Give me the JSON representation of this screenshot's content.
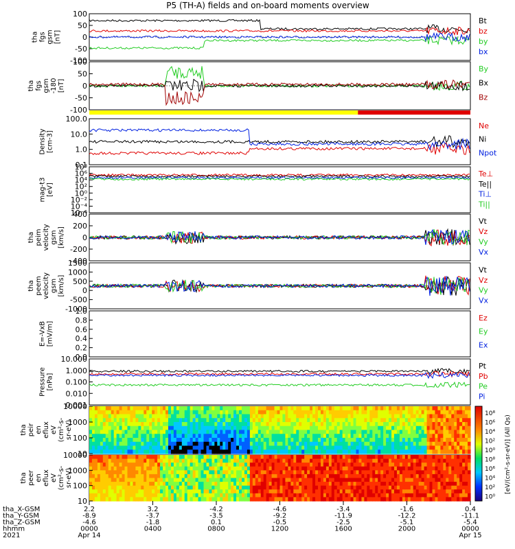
{
  "title": "P5 (TH-A) fields and on-board moments overview",
  "colors": {
    "black": "#000000",
    "red": "#e00000",
    "green": "#22cc22",
    "blue": "#0020e0",
    "darkred": "#a00000",
    "yellow": "#ffff00"
  },
  "chart_data": [
    {
      "type": "line",
      "panel": "fgs_gsm",
      "ylabel": [
        "tha",
        "fgs",
        "gsm",
        "[nT]"
      ],
      "ylim": [
        -100,
        100
      ],
      "yticks": [
        "100",
        "50",
        "0",
        "-50",
        "-100"
      ],
      "legend": [
        {
          "label": "Bt",
          "color": "black"
        },
        {
          "label": "bz",
          "color": "red"
        },
        {
          "label": "by",
          "color": "green"
        },
        {
          "label": "bx",
          "color": "blue"
        }
      ]
    },
    {
      "type": "line",
      "panel": "fgs_gse",
      "ylabel": [
        "tha",
        "fgs",
        "gsm",
        "-180",
        "[nT]"
      ],
      "ylim": [
        -120,
        120
      ],
      "yticks": [
        "100",
        "50",
        "0",
        "-50",
        "-100"
      ],
      "legend": [
        {
          "label": "By",
          "color": "green"
        },
        {
          "label": "Bx",
          "color": "black"
        },
        {
          "label": "Bz",
          "color": "darkred"
        }
      ]
    },
    {
      "type": "bar",
      "panel": "region_bar",
      "ylim": [
        0,
        1
      ],
      "segments": [
        {
          "from": "0000",
          "to": "1630",
          "color": "yellow"
        },
        {
          "from": "1630",
          "to": "0000",
          "color": "red"
        }
      ]
    },
    {
      "type": "line",
      "panel": "density",
      "ylabel": [
        "Density",
        "[cm-3]"
      ],
      "yscale": "log",
      "yticks": [
        "100.0",
        "10.0",
        "1.0",
        "0.1"
      ],
      "legend": [
        {
          "label": "Ne",
          "color": "red"
        },
        {
          "label": "Ni",
          "color": "black"
        },
        {
          "label": "Npot",
          "color": "blue"
        }
      ]
    },
    {
      "type": "line",
      "panel": "temperature",
      "ylabel": [
        "mag-t3",
        "[eV]"
      ],
      "yscale": "log",
      "yticks": [
        "10⁸",
        "10⁶",
        "10⁴",
        "10²",
        "10⁰",
        "10⁻²",
        "10⁻⁴",
        "10⁻⁶"
      ],
      "legend": [
        {
          "label": "Te⊥",
          "color": "red"
        },
        {
          "label": "Te||",
          "color": "black"
        },
        {
          "label": "Ti⊥",
          "color": "blue"
        },
        {
          "label": "Ti||",
          "color": "green"
        }
      ]
    },
    {
      "type": "line",
      "panel": "peim_velocity",
      "ylabel": [
        "tha",
        "peim",
        "velocity",
        "gsm",
        "[km/s]"
      ],
      "ylim": [
        -400,
        400
      ],
      "yticks": [
        "400",
        "200",
        "0",
        "-200",
        "-400"
      ],
      "legend": [
        {
          "label": "Vt",
          "color": "black"
        },
        {
          "label": "Vz",
          "color": "red"
        },
        {
          "label": "Vy",
          "color": "green"
        },
        {
          "label": "Vx",
          "color": "blue"
        }
      ]
    },
    {
      "type": "line",
      "panel": "peem_velocity",
      "ylabel": [
        "tha",
        "peem",
        "velocity",
        "gsm",
        "[km/s]"
      ],
      "ylim": [
        -1500,
        1500
      ],
      "yticks": [
        "1500",
        "1000",
        "500",
        "0",
        "-500",
        "-1000"
      ],
      "legend": [
        {
          "label": "Vt",
          "color": "black"
        },
        {
          "label": "Vz",
          "color": "red"
        },
        {
          "label": "Vy",
          "color": "green"
        },
        {
          "label": "Vx",
          "color": "blue"
        }
      ]
    },
    {
      "type": "line",
      "panel": "efield",
      "ylabel": [
        "E=-VxB",
        "[mV/m]"
      ],
      "ylim": [
        0,
        1
      ],
      "yticks": [
        "1.0",
        "0.8",
        "0.6",
        "0.4",
        "0.2",
        "0.0"
      ],
      "legend": [
        {
          "label": "Ez",
          "color": "red"
        },
        {
          "label": "Ey",
          "color": "green"
        },
        {
          "label": "Ex",
          "color": "blue"
        }
      ]
    },
    {
      "type": "line",
      "panel": "pressure",
      "ylabel": [
        "Pressure",
        "[nPa]"
      ],
      "yscale": "log",
      "yticks": [
        "10.000",
        "1.000",
        "0.100",
        "0.010",
        "0.001"
      ],
      "legend": [
        {
          "label": "Pt",
          "color": "black"
        },
        {
          "label": "Pb",
          "color": "red"
        },
        {
          "label": "Pe",
          "color": "green"
        },
        {
          "label": "Pi",
          "color": "blue"
        }
      ]
    },
    {
      "type": "heatmap",
      "panel": "peir_en_eflux",
      "ylabel": [
        "tha",
        "peir",
        "en",
        "eflux",
        "eV",
        "(cm²-s-",
        "sr-eV)"
      ],
      "yscale": "log",
      "yticks": [
        "10000",
        "1000",
        "100",
        "10"
      ]
    },
    {
      "type": "heatmap",
      "panel": "peer_en_eflux",
      "ylabel": [
        "tha",
        "peer",
        "en",
        "eflux",
        "eV",
        "(cm²-s-",
        "sr-eV)"
      ],
      "yscale": "log",
      "yticks": [
        "10000",
        "1000",
        "100",
        "10"
      ]
    }
  ],
  "colorbar": {
    "ticks": [
      "10⁸",
      "10⁶",
      "10⁴",
      "10²",
      "10⁰",
      "10⁸",
      "10⁶",
      "10⁴",
      "10²",
      "10⁰"
    ],
    "label": "[eV/(cm²-s-sr-eV)]  (All Qs)"
  },
  "xaxis": {
    "row_labels": [
      "tha_X-GSM",
      "tha_Y-GSM",
      "tha_Z-GSM",
      "hhmm",
      "2021"
    ],
    "columns": [
      {
        "x": "2.2",
        "y": "-8.9",
        "z": "-4.6",
        "t": "0000",
        "d": "Apr 14"
      },
      {
        "x": "3.2",
        "y": "-3.7",
        "z": "-1.8",
        "t": "0400",
        "d": ""
      },
      {
        "x": "-4.2",
        "y": "-3.5",
        "z": "0.1",
        "t": "0800",
        "d": ""
      },
      {
        "x": "-4.6",
        "y": "-9.2",
        "z": "-0.5",
        "t": "1200",
        "d": ""
      },
      {
        "x": "-3.4",
        "y": "-11.9",
        "z": "-2.5",
        "t": "1600",
        "d": ""
      },
      {
        "x": "-1.6",
        "y": "-12.2",
        "z": "-5.1",
        "t": "2000",
        "d": ""
      },
      {
        "x": "0.4",
        "y": "-11.1",
        "z": "-5.4",
        "t": "0000",
        "d": "Apr 15"
      }
    ]
  }
}
